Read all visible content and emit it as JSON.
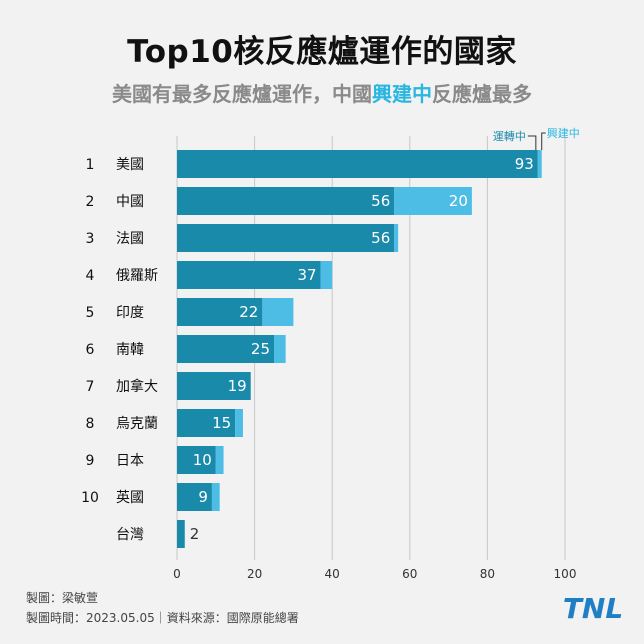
{
  "title": "Top10核反應爐運作的國家",
  "subtitle": {
    "prefix": "美國有最多反應爐運作，中國",
    "highlight": "興建中",
    "suffix": "反應爐最多"
  },
  "credit": "製圖：梁敏萱",
  "source": "製圖時間：2023.05.05｜資料來源：國際原能總署",
  "logo_text": "TNL",
  "colors": {
    "operating": "#1a8aab",
    "construction": "#4dbde6",
    "grid": "#c8c8c8",
    "highlight": "#29b6e0"
  },
  "chart_data": {
    "type": "bar",
    "orientation": "horizontal",
    "stacked": true,
    "ranks": [
      "1",
      "2",
      "3",
      "4",
      "5",
      "6",
      "7",
      "8",
      "9",
      "10",
      ""
    ],
    "categories": [
      "美國",
      "中國",
      "法國",
      "俄羅斯",
      "印度",
      "南韓",
      "加拿大",
      "烏克蘭",
      "日本",
      "英國",
      "台灣"
    ],
    "series": [
      {
        "name": "運轉中",
        "values": [
          93,
          56,
          56,
          37,
          22,
          25,
          19,
          15,
          10,
          9,
          2
        ]
      },
      {
        "name": "興建中",
        "values": [
          1,
          20,
          1,
          3,
          8,
          3,
          0,
          2,
          2,
          2,
          0
        ]
      }
    ],
    "construction_labels": [
      "",
      "20",
      "",
      "",
      "",
      "",
      "",
      "",
      "",
      "",
      ""
    ],
    "xlim": [
      0,
      100
    ],
    "xticks": [
      0,
      20,
      40,
      60,
      80,
      100
    ],
    "grid": true,
    "legend": {
      "operating": "運轉中",
      "construction": "興建中",
      "placement": "top-right"
    }
  }
}
